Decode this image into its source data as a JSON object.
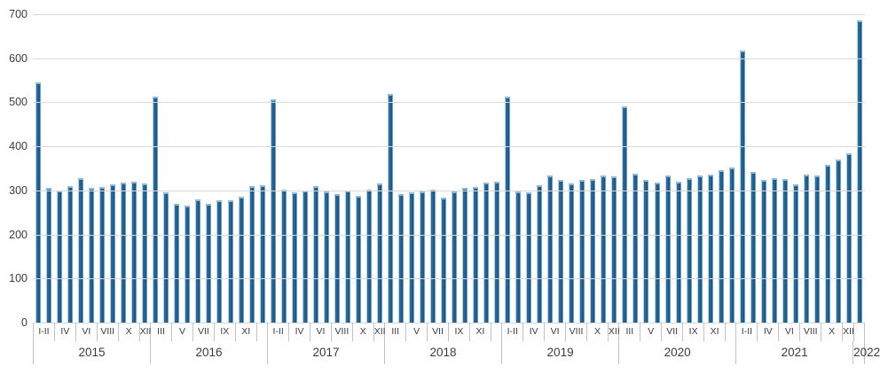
{
  "chart_data": {
    "type": "bar",
    "title": "",
    "xlabel": "",
    "ylabel": "",
    "ylim": [
      0,
      700
    ],
    "yticks": [
      0,
      100,
      200,
      300,
      400,
      500,
      600,
      700
    ],
    "grid": true,
    "legend": "none",
    "month_categories": [
      "I-II",
      "III",
      "IV",
      "V",
      "VI",
      "VII",
      "VIII",
      "IX",
      "X",
      "XI",
      "XII"
    ],
    "groups": [
      {
        "year": "2015",
        "values": [
          546,
          305,
          299,
          309,
          327,
          305,
          307,
          313,
          318,
          320,
          316
        ],
        "axis_cell_labels": [
          "I-II",
          "IV",
          "VI",
          "VIII",
          "X",
          "XII"
        ]
      },
      {
        "year": "2016",
        "values": [
          513,
          295,
          269,
          265,
          279,
          270,
          278,
          278,
          285,
          309,
          312
        ],
        "axis_cell_labels": [
          "III",
          "V",
          "VII",
          "IX",
          "XI",
          ""
        ]
      },
      {
        "year": "2017",
        "values": [
          507,
          302,
          296,
          299,
          309,
          297,
          291,
          300,
          287,
          301,
          315
        ],
        "axis_cell_labels": [
          "I-II",
          "IV",
          "VI",
          "VIII",
          "X",
          "XII"
        ]
      },
      {
        "year": "2018",
        "values": [
          518,
          291,
          295,
          297,
          301,
          284,
          297,
          306,
          308,
          317,
          319
        ],
        "axis_cell_labels": [
          "III",
          "V",
          "VII",
          "IX",
          "XI",
          ""
        ]
      },
      {
        "year": "2019",
        "values": [
          513,
          297,
          295,
          311,
          334,
          323,
          316,
          324,
          325,
          333,
          332
        ],
        "axis_cell_labels": [
          "I-II",
          "IV",
          "VI",
          "VIII",
          "X",
          "XII"
        ]
      },
      {
        "year": "2020",
        "values": [
          490,
          338,
          323,
          318,
          334,
          319,
          327,
          333,
          336,
          347,
          352
        ],
        "axis_cell_labels": [
          "III",
          "V",
          "VII",
          "IX",
          "XI",
          ""
        ]
      },
      {
        "year": "2021",
        "values": [
          618,
          341,
          323,
          328,
          325,
          313,
          336,
          334,
          359,
          371,
          385
        ],
        "axis_cell_labels": [
          "I-II",
          "IV",
          "VI",
          "VIII",
          "X",
          "XII"
        ]
      },
      {
        "year": "2022",
        "values": [
          685
        ],
        "axis_cell_labels": [
          ""
        ]
      }
    ],
    "colors": {
      "bar": "#2b6a9c",
      "bar_dark": "#1d5a8c",
      "bar_light": "#b3d0e7",
      "bar_cap": "#8fb9d9",
      "gridline": "#d9d9d9",
      "tick": "#c3c3c3",
      "text": "#3b3b3b"
    }
  }
}
